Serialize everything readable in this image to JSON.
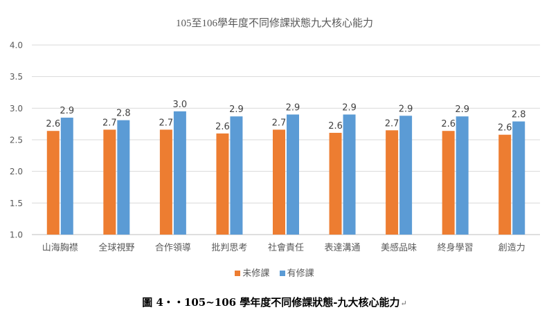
{
  "chart_data": {
    "type": "bar",
    "title": "105至106學年度不同修課狀態九大核心能力",
    "xlabel": "",
    "ylabel": "",
    "categories": [
      "山海胸襟",
      "全球視野",
      "合作領導",
      "批判思考",
      "社會責任",
      "表達溝通",
      "美感品味",
      "終身學習",
      "創造力"
    ],
    "series": [
      {
        "name": "未修課",
        "values": [
          2.64,
          2.66,
          2.66,
          2.6,
          2.66,
          2.61,
          2.65,
          2.64,
          2.58
        ],
        "labels": [
          "2.6",
          "2.7",
          "2.7",
          "2.6",
          "2.7",
          "2.6",
          "2.7",
          "2.6",
          "2.6"
        ],
        "color": "#ED7D31"
      },
      {
        "name": "有修課",
        "values": [
          2.85,
          2.81,
          2.95,
          2.87,
          2.9,
          2.9,
          2.88,
          2.87,
          2.79
        ],
        "labels": [
          "2.9",
          "2.8",
          "3.0",
          "2.9",
          "2.9",
          "2.9",
          "2.9",
          "2.9",
          "2.8"
        ],
        "color": "#5B9BD5"
      }
    ],
    "ylim": [
      1.0,
      4.0
    ],
    "yticks": [
      "1.0",
      "1.5",
      "2.0",
      "2.5",
      "3.0",
      "3.5",
      "4.0"
    ],
    "grid": true,
    "legend_position": "bottom"
  },
  "caption": {
    "text": "圖 4‧‧105~106 學年度不同修課狀態-九大核心能力",
    "mark": "↵"
  }
}
